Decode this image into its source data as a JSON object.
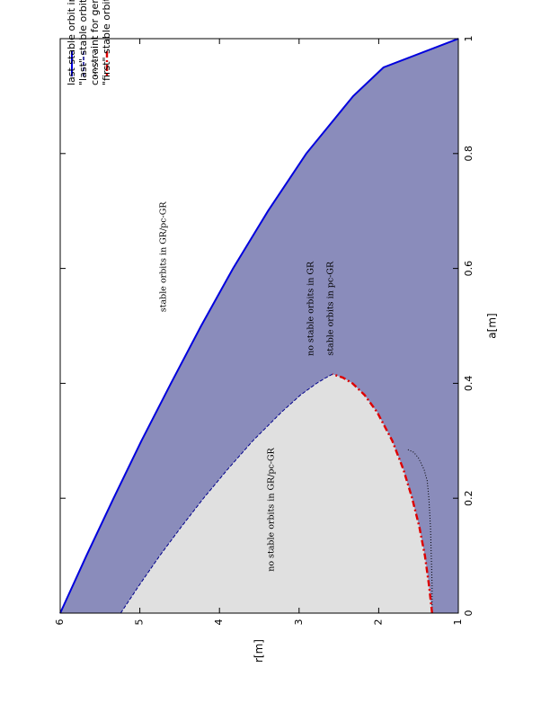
{
  "chart_data": {
    "type": "area",
    "orientation": "rotated-90-ccw",
    "xlabel": "a[m]",
    "ylabel": "r[m]",
    "xlim": [
      0,
      1
    ],
    "ylim": [
      1,
      6
    ],
    "x_ticks": [
      "0",
      "0.2",
      "0.4",
      "0.6",
      "0.8",
      "1"
    ],
    "y_ticks": [
      "1",
      "2",
      "3",
      "4",
      "5",
      "6"
    ],
    "legend_position": "top-right",
    "grid": false,
    "colors": {
      "stable_region": "#8a8cbb",
      "unstable_region": "#e0e0e0",
      "last_gr": "#0000dd",
      "last_pc": "#00008b",
      "constraint": "#000000",
      "first_pc": "#dd0000"
    },
    "series": [
      {
        "name": "last stable orbit in GR",
        "style": "solid",
        "x": [
          0,
          0.1,
          0.2,
          0.3,
          0.4,
          0.5,
          0.6,
          0.7,
          0.8,
          0.9,
          0.95,
          1.0
        ],
        "y": [
          6.0,
          5.67,
          5.33,
          4.98,
          4.61,
          4.23,
          3.83,
          3.39,
          2.91,
          2.32,
          1.94,
          1.0
        ]
      },
      {
        "name": "\"last\" stable orbit in pc-GR",
        "style": "dashed",
        "x": [
          0,
          0.05,
          0.1,
          0.15,
          0.2,
          0.25,
          0.3,
          0.35,
          0.38,
          0.4,
          0.41,
          0.416
        ],
        "y": [
          5.24,
          5.0,
          4.75,
          4.48,
          4.2,
          3.9,
          3.58,
          3.22,
          2.98,
          2.78,
          2.66,
          2.58
        ]
      },
      {
        "name": "constraint for general orbits",
        "style": "dotted",
        "x": [
          0,
          0.05,
          0.1,
          0.15,
          0.2,
          0.23,
          0.25,
          0.27,
          0.28,
          0.285
        ],
        "y": [
          1.33,
          1.33,
          1.34,
          1.35,
          1.37,
          1.39,
          1.43,
          1.5,
          1.56,
          1.64
        ]
      },
      {
        "name": "\"first\" stable orbit in pc-GR",
        "style": "dash-dot",
        "x": [
          0,
          0.05,
          0.1,
          0.15,
          0.2,
          0.25,
          0.3,
          0.35,
          0.38,
          0.4,
          0.41,
          0.416
        ],
        "y": [
          1.33,
          1.37,
          1.42,
          1.49,
          1.58,
          1.69,
          1.83,
          2.02,
          2.18,
          2.33,
          2.45,
          2.58
        ]
      }
    ],
    "annotations": [
      {
        "text": "stable orbits in GR/pc-GR",
        "x": 0.62,
        "y": 4.7
      },
      {
        "text": "no stable orbits in GR",
        "x": 0.53,
        "y": 2.85
      },
      {
        "text": "stable orbits in pc-GR",
        "x": 0.53,
        "y": 2.6
      },
      {
        "text": "no stable orbits in GR/pc-GR",
        "x": 0.18,
        "y": 3.35
      }
    ]
  }
}
